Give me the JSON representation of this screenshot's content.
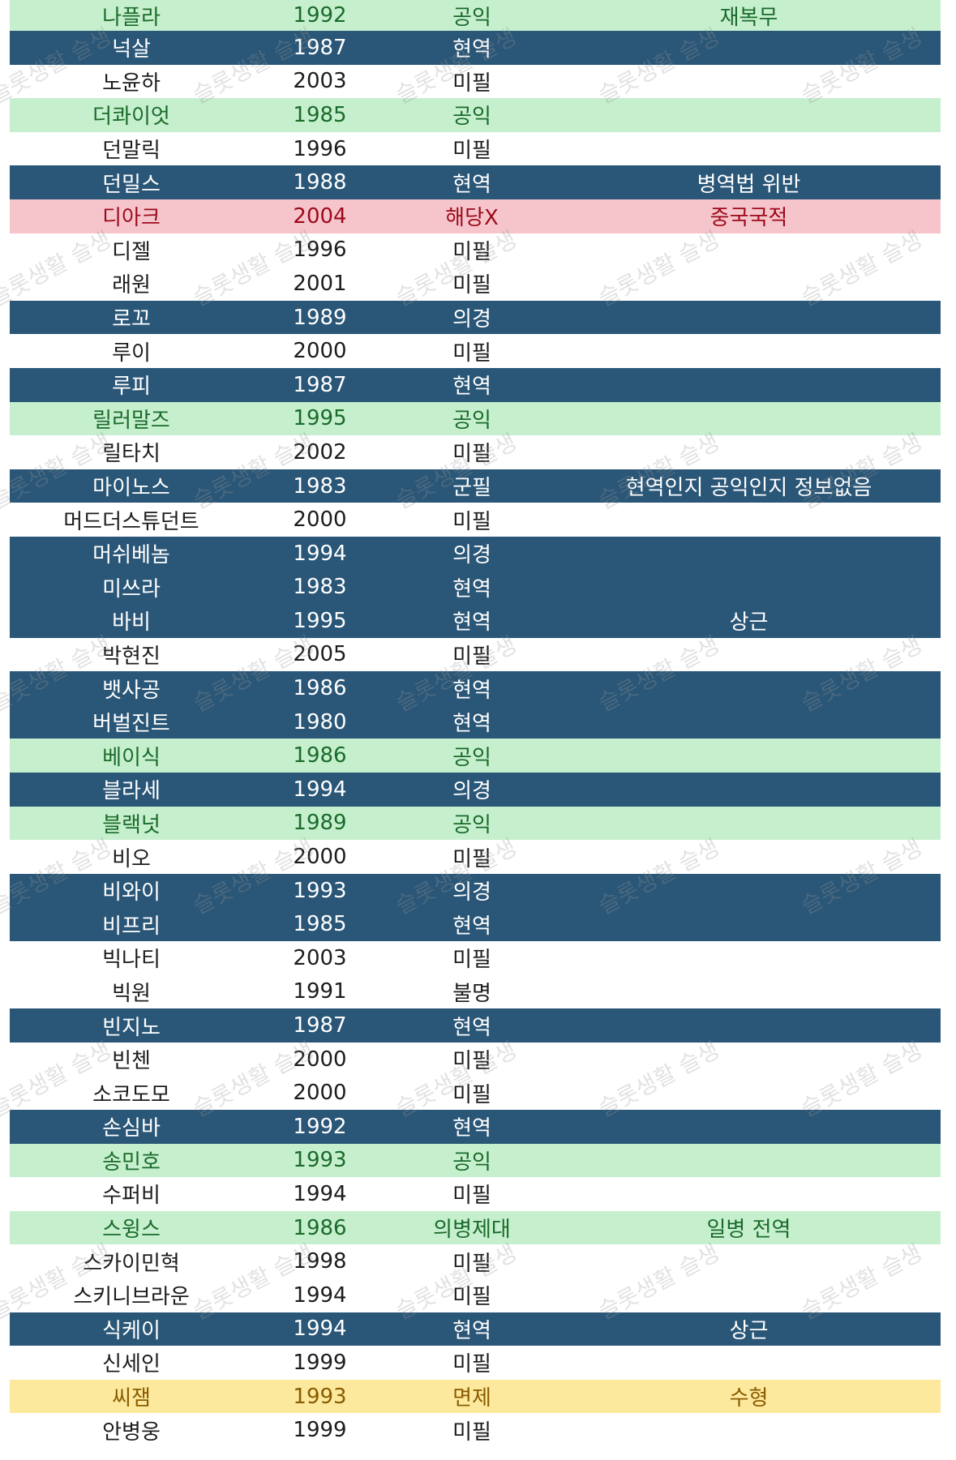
{
  "rows": [
    {
      "name": "나플라",
      "year": "1992",
      "status": "공익",
      "note": "재복무",
      "theme": "green"
    },
    {
      "name": "넉살",
      "year": "1987",
      "status": "현역",
      "note": "",
      "theme": "dark"
    },
    {
      "name": "노윤하",
      "year": "2003",
      "status": "미필",
      "note": "",
      "theme": "white"
    },
    {
      "name": "더콰이엇",
      "year": "1985",
      "status": "공익",
      "note": "",
      "theme": "green"
    },
    {
      "name": "던말릭",
      "year": "1996",
      "status": "미필",
      "note": "",
      "theme": "white"
    },
    {
      "name": "던밀스",
      "year": "1988",
      "status": "현역",
      "note": "병역법 위반",
      "theme": "dark"
    },
    {
      "name": "디아크",
      "year": "2004",
      "status": "해당X",
      "note": "중국국적",
      "theme": "red"
    },
    {
      "name": "디젤",
      "year": "1996",
      "status": "미필",
      "note": "",
      "theme": "white"
    },
    {
      "name": "래원",
      "year": "2001",
      "status": "미필",
      "note": "",
      "theme": "white"
    },
    {
      "name": "로꼬",
      "year": "1989",
      "status": "의경",
      "note": "",
      "theme": "dark"
    },
    {
      "name": "루이",
      "year": "2000",
      "status": "미필",
      "note": "",
      "theme": "white"
    },
    {
      "name": "루피",
      "year": "1987",
      "status": "현역",
      "note": "",
      "theme": "dark"
    },
    {
      "name": "릴러말즈",
      "year": "1995",
      "status": "공익",
      "note": "",
      "theme": "green"
    },
    {
      "name": "릴타치",
      "year": "2002",
      "status": "미필",
      "note": "",
      "theme": "white"
    },
    {
      "name": "마이노스",
      "year": "1983",
      "status": "군필",
      "note": "현역인지 공익인지 정보없음",
      "theme": "dark"
    },
    {
      "name": "머드더스튜던트",
      "year": "2000",
      "status": "미필",
      "note": "",
      "theme": "white"
    },
    {
      "name": "머쉬베놈",
      "year": "1994",
      "status": "의경",
      "note": "",
      "theme": "dark"
    },
    {
      "name": "미쓰라",
      "year": "1983",
      "status": "현역",
      "note": "",
      "theme": "dark"
    },
    {
      "name": "바비",
      "year": "1995",
      "status": "현역",
      "note": "상근",
      "theme": "dark"
    },
    {
      "name": "박현진",
      "year": "2005",
      "status": "미필",
      "note": "",
      "theme": "white"
    },
    {
      "name": "뱃사공",
      "year": "1986",
      "status": "현역",
      "note": "",
      "theme": "dark"
    },
    {
      "name": "버벌진트",
      "year": "1980",
      "status": "현역",
      "note": "",
      "theme": "dark"
    },
    {
      "name": "베이식",
      "year": "1986",
      "status": "공익",
      "note": "",
      "theme": "green"
    },
    {
      "name": "블라세",
      "year": "1994",
      "status": "의경",
      "note": "",
      "theme": "dark"
    },
    {
      "name": "블랙넛",
      "year": "1989",
      "status": "공익",
      "note": "",
      "theme": "green"
    },
    {
      "name": "비오",
      "year": "2000",
      "status": "미필",
      "note": "",
      "theme": "white"
    },
    {
      "name": "비와이",
      "year": "1993",
      "status": "의경",
      "note": "",
      "theme": "dark"
    },
    {
      "name": "비프리",
      "year": "1985",
      "status": "현역",
      "note": "",
      "theme": "dark"
    },
    {
      "name": "빅나티",
      "year": "2003",
      "status": "미필",
      "note": "",
      "theme": "white"
    },
    {
      "name": "빅원",
      "year": "1991",
      "status": "불명",
      "note": "",
      "theme": "white"
    },
    {
      "name": "빈지노",
      "year": "1987",
      "status": "현역",
      "note": "",
      "theme": "dark"
    },
    {
      "name": "빈첸",
      "year": "2000",
      "status": "미필",
      "note": "",
      "theme": "white"
    },
    {
      "name": "소코도모",
      "year": "2000",
      "status": "미필",
      "note": "",
      "theme": "white"
    },
    {
      "name": "손심바",
      "year": "1992",
      "status": "현역",
      "note": "",
      "theme": "dark"
    },
    {
      "name": "송민호",
      "year": "1993",
      "status": "공익",
      "note": "",
      "theme": "green"
    },
    {
      "name": "수퍼비",
      "year": "1994",
      "status": "미필",
      "note": "",
      "theme": "white"
    },
    {
      "name": "스윙스",
      "year": "1986",
      "status": "의병제대",
      "note": "일병 전역",
      "theme": "green"
    },
    {
      "name": "스카이민혁",
      "year": "1998",
      "status": "미필",
      "note": "",
      "theme": "white"
    },
    {
      "name": "스키니브라운",
      "year": "1994",
      "status": "미필",
      "note": "",
      "theme": "white"
    },
    {
      "name": "식케이",
      "year": "1994",
      "status": "현역",
      "note": "상근",
      "theme": "dark"
    },
    {
      "name": "신세인",
      "year": "1999",
      "status": "미필",
      "note": "",
      "theme": "white"
    },
    {
      "name": "씨잼",
      "year": "1993",
      "status": "면제",
      "note": "수형",
      "theme": "yellow"
    },
    {
      "name": "안병웅",
      "year": "1999",
      "status": "미필",
      "note": "",
      "theme": "white"
    }
  ],
  "watermark_text": "슬롯생활 슬생",
  "colors": {
    "dark": "#2a5677",
    "green": "#c6efce",
    "red": "#f6c5cc",
    "yellow": "#fde99e",
    "white": "#ffffff"
  }
}
